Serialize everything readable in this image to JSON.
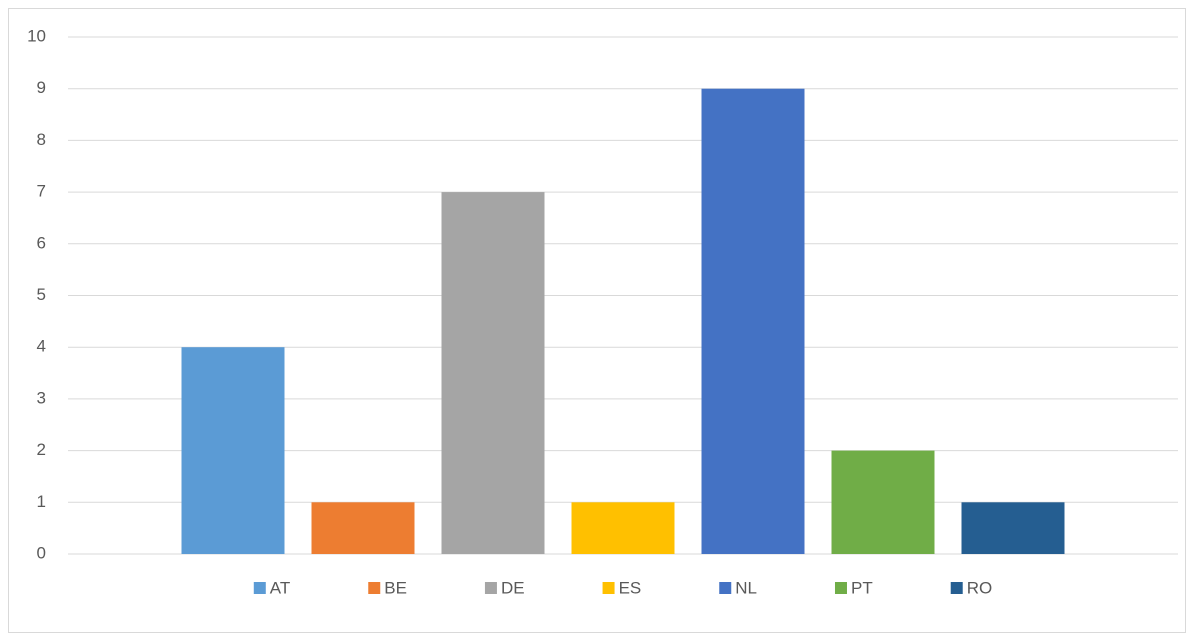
{
  "chart_data": {
    "type": "bar",
    "categories": [
      null
    ],
    "series": [
      {
        "name": "AT",
        "color": "#5b9bd5",
        "values": [
          4
        ]
      },
      {
        "name": "BE",
        "color": "#ed7d31",
        "values": [
          1
        ]
      },
      {
        "name": "DE",
        "color": "#a5a5a5",
        "values": [
          7
        ]
      },
      {
        "name": "ES",
        "color": "#ffc000",
        "values": [
          1
        ]
      },
      {
        "name": "NL",
        "color": "#4472c4",
        "values": [
          9
        ]
      },
      {
        "name": "PT",
        "color": "#70ad47",
        "values": [
          2
        ]
      },
      {
        "name": "RO",
        "color": "#255e91",
        "values": [
          1
        ]
      }
    ],
    "ylim": [
      0,
      10
    ],
    "yticks": [
      0,
      1,
      2,
      3,
      4,
      5,
      6,
      7,
      8,
      9,
      10
    ],
    "grid": true,
    "legend": "bottom"
  }
}
